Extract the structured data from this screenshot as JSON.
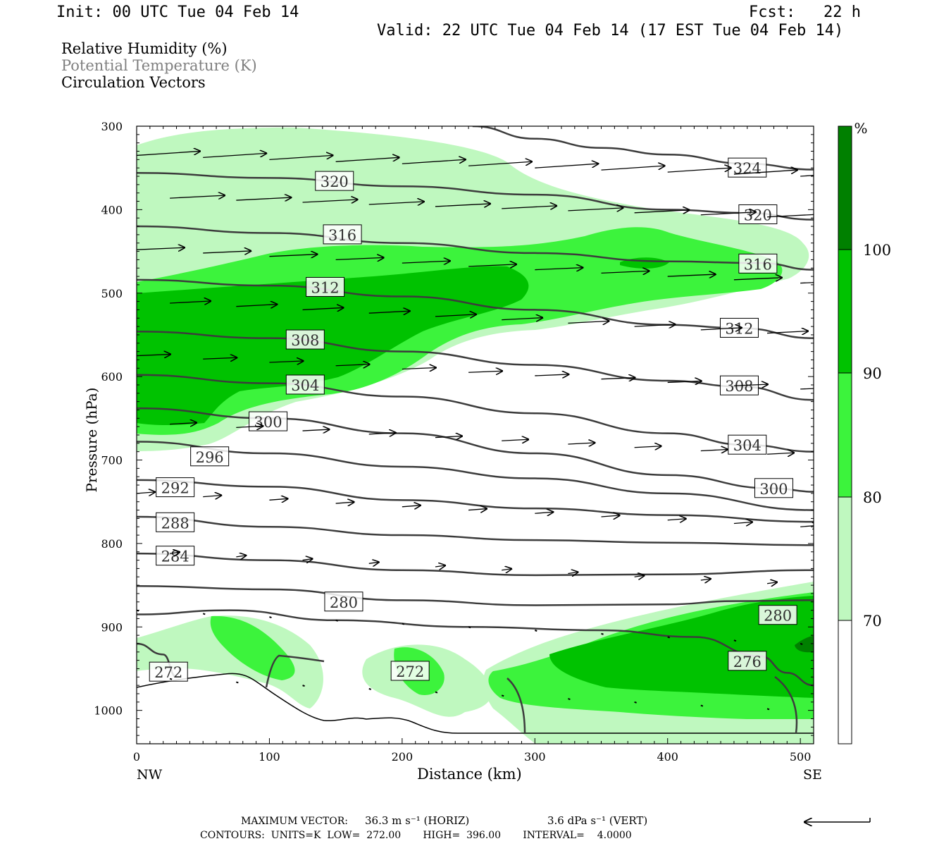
{
  "header": {
    "init": "Init: 00 UTC Tue 04 Feb 14",
    "fcst": "Fcst:   22 h",
    "valid": "Valid: 22 UTC Tue 04 Feb 14 (17 EST Tue 04 Feb 14)"
  },
  "legend": {
    "rh": "Relative Humidity (%)",
    "theta": "Potential Temperature (K)",
    "vectors": "Circulation Vectors"
  },
  "footer": {
    "max_vector_label": "MAXIMUM VECTOR:",
    "max_horiz": "36.3 m s⁻¹ (HORIZ)",
    "max_vert": "3.6 dPa s⁻¹ (VERT)",
    "contours": "CONTOURS:  UNITS=K  LOW=  272.00       HIGH=  396.00       INTERVAL=    4.0000"
  },
  "colors": {
    "rh_70_80": "#bff8bf",
    "rh_80_90": "#3cf33c",
    "rh_90_100": "#00c200",
    "rh_100": "#008000",
    "contour": "#3c3c3c"
  },
  "chart_data": {
    "type": "contour",
    "xlabel": "Distance (km)",
    "ylabel": "Pressure (hPa)",
    "xlim": [
      0,
      510
    ],
    "ylim": [
      300,
      1040
    ],
    "x_ticks": [
      0,
      100,
      200,
      300,
      400,
      500
    ],
    "y_ticks": [
      300,
      400,
      500,
      600,
      700,
      800,
      900,
      1000
    ],
    "x_end_labels": {
      "left": "NW",
      "right": "SE"
    },
    "colorbar": {
      "unit": "%",
      "levels": [
        70,
        80,
        90,
        100
      ]
    },
    "theta_contours": [
      {
        "level": 324,
        "label": "324",
        "points": [
          [
            253,
            300
          ],
          [
            300,
            315
          ],
          [
            350,
            326
          ],
          [
            400,
            334
          ],
          [
            460,
            345
          ],
          [
            510,
            352
          ]
        ],
        "label_at": [
          460,
          350
        ]
      },
      {
        "level": 320,
        "label": "320",
        "points": [
          [
            0,
            356
          ],
          [
            100,
            362
          ],
          [
            200,
            372
          ],
          [
            300,
            382
          ],
          [
            400,
            400
          ],
          [
            460,
            404
          ],
          [
            510,
            412
          ]
        ],
        "label_at": [
          149,
          366
        ],
        "label_at2": [
          468,
          406
        ]
      },
      {
        "level": 316,
        "label": "316",
        "points": [
          [
            0,
            420
          ],
          [
            100,
            428
          ],
          [
            200,
            440
          ],
          [
            300,
            452
          ],
          [
            400,
            462
          ],
          [
            470,
            464
          ],
          [
            510,
            472
          ]
        ],
        "label_at": [
          155,
          430
        ],
        "label_at2": [
          468,
          465
        ]
      },
      {
        "level": 312,
        "label": "312",
        "points": [
          [
            0,
            484
          ],
          [
            100,
            491
          ],
          [
            200,
            504
          ],
          [
            300,
            520
          ],
          [
            400,
            538
          ],
          [
            455,
            542
          ],
          [
            510,
            554
          ]
        ],
        "label_at": [
          142,
          493
        ],
        "label_at2": [
          454,
          542
        ]
      },
      {
        "level": 308,
        "label": "308",
        "points": [
          [
            0,
            546
          ],
          [
            100,
            554
          ],
          [
            200,
            570
          ],
          [
            300,
            586
          ],
          [
            400,
            605
          ],
          [
            455,
            612
          ],
          [
            510,
            628
          ]
        ],
        "label_at": [
          127,
          556
        ],
        "label_at2": [
          454,
          611
        ]
      },
      {
        "level": 304,
        "label": "304",
        "points": [
          [
            0,
            598
          ],
          [
            100,
            608
          ],
          [
            200,
            624
          ],
          [
            300,
            644
          ],
          [
            400,
            668
          ],
          [
            460,
            682
          ],
          [
            510,
            690
          ]
        ],
        "label_at": [
          127,
          610
        ],
        "label_at2": [
          460,
          682
        ]
      },
      {
        "level": 300,
        "label": "300",
        "points": [
          [
            0,
            638
          ],
          [
            100,
            650
          ],
          [
            200,
            668
          ],
          [
            300,
            692
          ],
          [
            400,
            718
          ],
          [
            480,
            734
          ],
          [
            510,
            738
          ]
        ],
        "label_at": [
          99,
          654
        ],
        "label_at2": [
          480,
          734
        ]
      },
      {
        "level": 296,
        "label": "296",
        "points": [
          [
            0,
            678
          ],
          [
            100,
            692
          ],
          [
            200,
            708
          ],
          [
            300,
            722
          ],
          [
            400,
            740
          ],
          [
            510,
            760
          ]
        ],
        "label_at": [
          55,
          696
        ]
      },
      {
        "level": 292,
        "label": "292",
        "points": [
          [
            0,
            724
          ],
          [
            100,
            732
          ],
          [
            200,
            748
          ],
          [
            300,
            758
          ],
          [
            400,
            766
          ],
          [
            510,
            774
          ]
        ],
        "label_at": [
          29,
          733
        ]
      },
      {
        "level": 288,
        "label": "288",
        "points": [
          [
            0,
            768
          ],
          [
            100,
            780
          ],
          [
            200,
            790
          ],
          [
            300,
            796
          ],
          [
            400,
            799
          ],
          [
            510,
            802
          ]
        ],
        "label_at": [
          29,
          775
        ]
      },
      {
        "level": 284,
        "label": "284",
        "points": [
          [
            0,
            812
          ],
          [
            100,
            820
          ],
          [
            200,
            832
          ],
          [
            300,
            838
          ],
          [
            400,
            837
          ],
          [
            510,
            832
          ]
        ],
        "label_at": [
          29,
          815
        ]
      },
      {
        "level": 280,
        "label": "280",
        "points": [
          [
            0,
            851
          ],
          [
            100,
            855
          ],
          [
            200,
            868
          ],
          [
            300,
            874
          ],
          [
            400,
            873
          ],
          [
            450,
            869
          ],
          [
            510,
            868
          ]
        ],
        "label_at": [
          156,
          870
        ],
        "label_at2": [
          483,
          886
        ]
      },
      {
        "level": 276,
        "label": "276",
        "points": [
          [
            0,
            885
          ],
          [
            70,
            880
          ],
          [
            150,
            892
          ],
          [
            250,
            900
          ],
          [
            350,
            904
          ],
          [
            420,
            912
          ],
          [
            470,
            935
          ],
          [
            490,
            955
          ],
          [
            510,
            970
          ]
        ],
        "label_at": [
          460,
          941
        ]
      },
      {
        "level": 272,
        "label": "272",
        "points": [
          [
            0,
            920
          ],
          [
            20,
            933
          ],
          [
            30,
            960
          ]
        ],
        "label_at": [
          24,
          954
        ],
        "label_at2": [
          206,
          953
        ]
      }
    ],
    "vectors_note": "circulation vectors plotted on a grid; longest arrow = 36.3 m/s horizontal"
  }
}
